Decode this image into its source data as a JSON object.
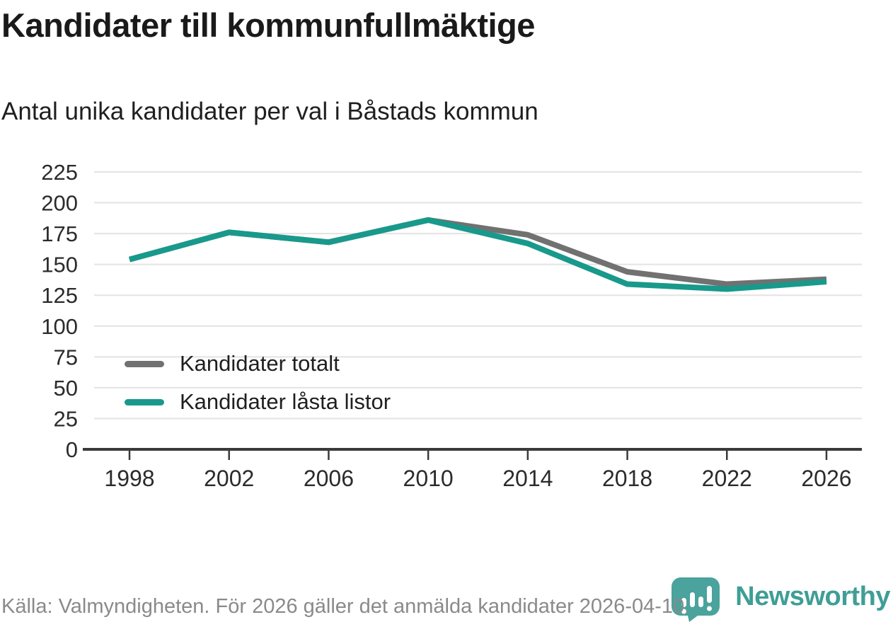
{
  "title": "Kandidater till kommunfullmäktige",
  "subtitle": "Antal unika kandidater per val i Båstads kommun",
  "footer": {
    "source_text": "Källa: Valmyndigheten. För 2026 gäller det anmälda kandidater 2026-04-10.",
    "brand": "Newsworthy"
  },
  "colors": {
    "total_line": "#717171",
    "locked_line": "#18998b",
    "grid": "#e3e3e3",
    "axis": "#3a3a3a",
    "tick_text": "#2b2b2b",
    "footer_text": "#8a8a8a",
    "brand_teal": "#3f9e96"
  },
  "chart_data": {
    "type": "line",
    "title": "Kandidater till kommunfullmäktige",
    "subtitle": "Antal unika kandidater per val i Båstads kommun",
    "x": [
      1998,
      2002,
      2006,
      2010,
      2014,
      2018,
      2022,
      2026
    ],
    "series": [
      {
        "name": "Kandidater totalt",
        "color": "#717171",
        "values": [
          154,
          176,
          168,
          186,
          174,
          144,
          134,
          138
        ]
      },
      {
        "name": "Kandidater låsta listor",
        "color": "#18998b",
        "values": [
          154,
          176,
          168,
          186,
          167,
          134,
          130,
          136
        ]
      }
    ],
    "xlabel": "",
    "ylabel": "",
    "ylim": [
      0,
      225
    ],
    "ytick_step": 25,
    "grid": "horizontal",
    "legend_position": "inside-left"
  }
}
